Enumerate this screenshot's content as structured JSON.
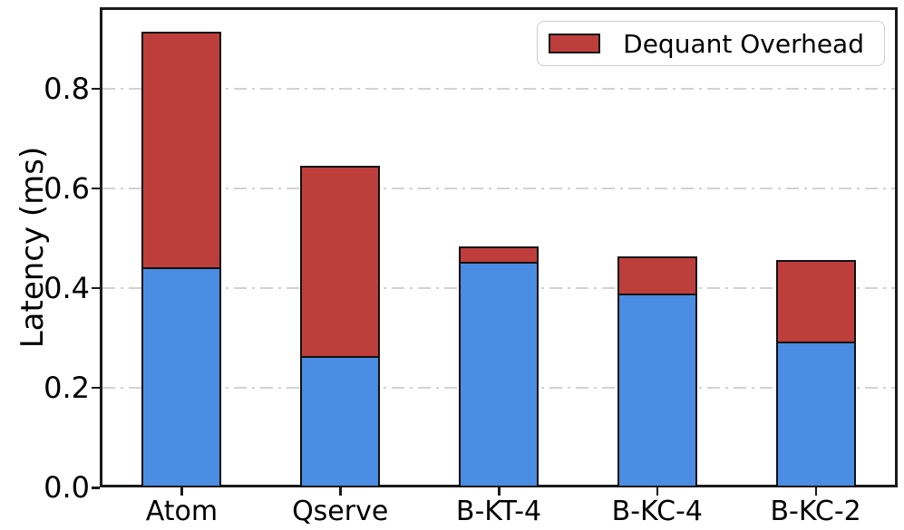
{
  "chart_data": {
    "type": "bar",
    "stacked": true,
    "title": "",
    "xlabel": "",
    "ylabel": "Latency (ms)",
    "categories": [
      "Atom",
      "Qserve",
      "B-KT-4",
      "B-KC-4",
      "B-KC-2"
    ],
    "series": [
      {
        "name": "Base Latency",
        "color": "#4a8de2",
        "in_legend": false,
        "values": [
          0.442,
          0.264,
          0.454,
          0.39,
          0.293
        ]
      },
      {
        "name": "Dequant Overhead",
        "color": "#be3e3c",
        "in_legend": true,
        "values": [
          0.472,
          0.382,
          0.029,
          0.074,
          0.163
        ]
      }
    ],
    "ylim": [
      0,
      0.958
    ],
    "yticks": [
      0.0,
      0.2,
      0.4,
      0.6,
      0.8
    ],
    "ytick_labels": [
      "0.0",
      "0.2",
      "0.4",
      "0.6",
      "0.8"
    ],
    "grid": {
      "axis": "y",
      "style": "dash-dot",
      "color": "#d2d2d2"
    },
    "legend": {
      "position": "upper-right",
      "border_color": "#cccccc",
      "entries": [
        {
          "label": "Dequant Overhead",
          "color": "#be3e3c"
        }
      ]
    },
    "bar_edge_color": "#111111",
    "axis_color": "#1a1a1a",
    "background": "#ffffff"
  }
}
